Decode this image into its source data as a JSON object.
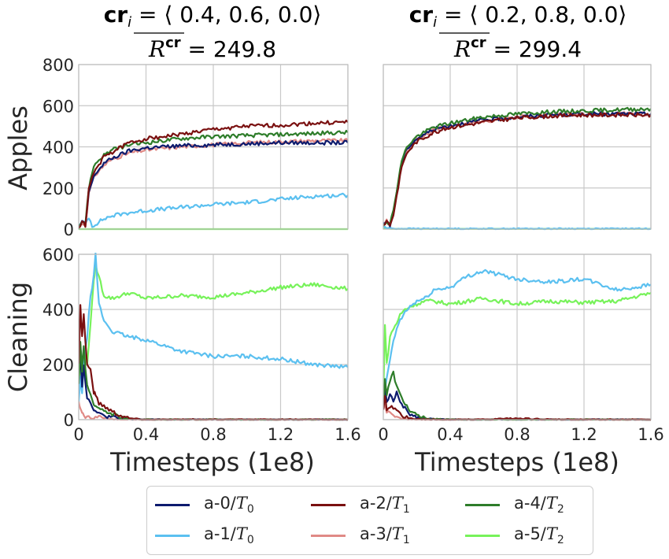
{
  "panel_titles": [
    {
      "line1_bold": "cr",
      "line1_sub": "i",
      "line1_rest": " = ⟨ 0.4, 0.6, 0.0⟩",
      "line2_rest": " = 249.8"
    },
    {
      "line1_bold": "cr",
      "line1_sub": "i",
      "line1_rest": " = ⟨ 0.2, 0.8, 0.0⟩",
      "line2_rest": " = 299.4"
    }
  ],
  "reward_symbol": {
    "base": "R",
    "sup": "cr"
  },
  "ylabels": {
    "top": "Apples",
    "bottom": "Cleaning"
  },
  "xlabel": "Timesteps (1e8)",
  "colors": {
    "a0": "#0d1b6e",
    "a1": "#5bc0f0",
    "a2": "#7a1010",
    "a3": "#e08a86",
    "a4": "#2e7d2a",
    "a5": "#77f25a",
    "grid": "#c8c8c8",
    "spine": "#bdbdbd"
  },
  "legend": [
    {
      "key": "a0",
      "prefix": "a-0/",
      "var": "T",
      "sub": "0"
    },
    {
      "key": "a1",
      "prefix": "a-1/",
      "var": "T",
      "sub": "0"
    },
    {
      "key": "a2",
      "prefix": "a-2/",
      "var": "T",
      "sub": "1"
    },
    {
      "key": "a3",
      "prefix": "a-3/",
      "var": "T",
      "sub": "1"
    },
    {
      "key": "a4",
      "prefix": "a-4/",
      "var": "T",
      "sub": "2"
    },
    {
      "key": "a5",
      "prefix": "a-5/",
      "var": "T",
      "sub": "2"
    }
  ],
  "chart_data": [
    {
      "type": "line",
      "panel": "top-left",
      "xlabel": "",
      "ylabel": "Apples",
      "xlim": [
        0,
        1.6
      ],
      "ylim": [
        0,
        800
      ],
      "yticks": [
        0,
        200,
        400,
        600,
        800
      ],
      "xticks": [
        0,
        0.4,
        0.8,
        1.2,
        1.6
      ],
      "xtick_labels_visible": false,
      "grid": true,
      "x": [
        0,
        0.02,
        0.04,
        0.06,
        0.08,
        0.1,
        0.15,
        0.2,
        0.3,
        0.4,
        0.6,
        0.8,
        1.0,
        1.2,
        1.4,
        1.6
      ],
      "series": [
        {
          "key": "a0",
          "values": [
            10,
            35,
            20,
            180,
            230,
            270,
            320,
            345,
            380,
            395,
            405,
            410,
            415,
            420,
            420,
            420
          ]
        },
        {
          "key": "a1",
          "values": [
            10,
            30,
            25,
            60,
            15,
            25,
            50,
            65,
            80,
            90,
            105,
            120,
            130,
            145,
            160,
            165
          ]
        },
        {
          "key": "a2",
          "values": [
            10,
            30,
            20,
            190,
            250,
            290,
            350,
            375,
            420,
            440,
            460,
            485,
            500,
            505,
            515,
            520
          ]
        },
        {
          "key": "a3",
          "values": [
            10,
            28,
            20,
            170,
            230,
            265,
            310,
            340,
            370,
            385,
            400,
            410,
            420,
            425,
            430,
            430
          ]
        },
        {
          "key": "a4",
          "values": [
            10,
            40,
            25,
            200,
            280,
            320,
            360,
            385,
            410,
            420,
            440,
            450,
            455,
            460,
            465,
            470
          ]
        },
        {
          "key": "a5",
          "values": [
            0,
            0,
            0,
            0,
            0,
            0,
            0,
            0,
            0,
            0,
            0,
            0,
            0,
            0,
            0,
            0
          ]
        }
      ]
    },
    {
      "type": "line",
      "panel": "top-right",
      "xlabel": "",
      "ylabel": "",
      "xlim": [
        0,
        1.6
      ],
      "ylim": [
        0,
        800
      ],
      "yticks": [
        0,
        200,
        400,
        600,
        800
      ],
      "ytick_labels_visible": false,
      "xticks": [
        0,
        0.4,
        0.8,
        1.2,
        1.6
      ],
      "xtick_labels_visible": false,
      "grid": true,
      "x": [
        0,
        0.02,
        0.04,
        0.06,
        0.08,
        0.1,
        0.12,
        0.15,
        0.2,
        0.3,
        0.4,
        0.6,
        0.8,
        1.0,
        1.2,
        1.4,
        1.6
      ],
      "series": [
        {
          "key": "a0",
          "values": [
            20,
            40,
            20,
            80,
            180,
            280,
            350,
            400,
            440,
            485,
            505,
            530,
            545,
            555,
            560,
            560,
            560
          ]
        },
        {
          "key": "a1",
          "values": [
            10,
            5,
            5,
            3,
            2,
            2,
            2,
            2,
            2,
            2,
            2,
            2,
            2,
            2,
            2,
            2,
            2
          ]
        },
        {
          "key": "a2",
          "values": [
            20,
            40,
            20,
            70,
            160,
            260,
            330,
            380,
            425,
            470,
            495,
            520,
            540,
            550,
            555,
            555,
            555
          ]
        },
        {
          "key": "a3",
          "values": [
            20,
            40,
            20,
            75,
            170,
            270,
            340,
            390,
            435,
            480,
            500,
            525,
            545,
            555,
            560,
            560,
            560
          ]
        },
        {
          "key": "a4",
          "values": [
            20,
            42,
            22,
            90,
            190,
            290,
            360,
            410,
            450,
            495,
            515,
            545,
            560,
            570,
            575,
            580,
            585
          ]
        },
        {
          "key": "a5",
          "values": [
            5,
            3,
            2,
            1,
            1,
            1,
            1,
            1,
            1,
            1,
            1,
            1,
            1,
            1,
            1,
            1,
            1
          ]
        }
      ]
    },
    {
      "type": "line",
      "panel": "bottom-left",
      "xlabel": "Timesteps (1e8)",
      "ylabel": "Cleaning",
      "xlim": [
        0,
        1.6
      ],
      "ylim": [
        0,
        600
      ],
      "yticks": [
        0,
        200,
        400,
        600
      ],
      "xticks": [
        0,
        0.4,
        0.8,
        1.2,
        1.6
      ],
      "grid": true,
      "x": [
        0,
        0.01,
        0.02,
        0.03,
        0.05,
        0.07,
        0.09,
        0.1,
        0.12,
        0.15,
        0.2,
        0.25,
        0.3,
        0.4,
        0.6,
        0.8,
        1.0,
        1.2,
        1.4,
        1.6
      ],
      "series": [
        {
          "key": "a0",
          "values": [
            150,
            250,
            120,
            200,
            80,
            60,
            40,
            30,
            20,
            15,
            8,
            4,
            2,
            0,
            0,
            0,
            0,
            0,
            0,
            0
          ]
        },
        {
          "key": "a1",
          "values": [
            60,
            150,
            100,
            200,
            300,
            450,
            520,
            600,
            420,
            360,
            320,
            310,
            300,
            290,
            250,
            230,
            230,
            220,
            200,
            190
          ]
        },
        {
          "key": "a2",
          "values": [
            200,
            420,
            300,
            380,
            200,
            180,
            100,
            90,
            60,
            50,
            30,
            15,
            5,
            0,
            0,
            0,
            0,
            0,
            0,
            0
          ]
        },
        {
          "key": "a3",
          "values": [
            60,
            40,
            20,
            15,
            10,
            5,
            5,
            8,
            10,
            5,
            2,
            0,
            0,
            0,
            0,
            0,
            0,
            0,
            0,
            0
          ]
        },
        {
          "key": "a4",
          "values": [
            130,
            280,
            180,
            260,
            120,
            90,
            60,
            50,
            35,
            30,
            20,
            8,
            2,
            0,
            0,
            0,
            0,
            0,
            0,
            0
          ]
        },
        {
          "key": "a5",
          "values": [
            100,
            200,
            150,
            250,
            200,
            350,
            500,
            560,
            520,
            450,
            440,
            450,
            460,
            440,
            450,
            445,
            460,
            480,
            490,
            475
          ]
        }
      ]
    },
    {
      "type": "line",
      "panel": "bottom-right",
      "xlabel": "Timesteps (1e8)",
      "ylabel": "",
      "xlim": [
        0,
        1.6
      ],
      "ylim": [
        0,
        600
      ],
      "yticks": [
        0,
        200,
        400,
        600
      ],
      "ytick_labels_visible": false,
      "xticks": [
        0,
        0.4,
        0.8,
        1.2,
        1.6
      ],
      "grid": true,
      "x": [
        0,
        0.01,
        0.02,
        0.04,
        0.06,
        0.08,
        0.1,
        0.13,
        0.16,
        0.2,
        0.25,
        0.3,
        0.4,
        0.5,
        0.6,
        0.8,
        1.0,
        1.2,
        1.4,
        1.6
      ],
      "series": [
        {
          "key": "a0",
          "values": [
            40,
            120,
            60,
            90,
            70,
            100,
            60,
            40,
            20,
            10,
            5,
            2,
            0,
            0,
            0,
            0,
            0,
            0,
            0,
            0
          ]
        },
        {
          "key": "a1",
          "values": [
            30,
            100,
            150,
            220,
            280,
            330,
            360,
            390,
            410,
            430,
            440,
            470,
            480,
            520,
            540,
            510,
            500,
            510,
            470,
            490
          ]
        },
        {
          "key": "a2",
          "values": [
            30,
            80,
            40,
            50,
            40,
            30,
            20,
            10,
            5,
            2,
            0,
            0,
            0,
            0,
            0,
            5,
            0,
            0,
            0,
            0
          ]
        },
        {
          "key": "a3",
          "values": [
            40,
            60,
            30,
            20,
            15,
            10,
            5,
            2,
            0,
            0,
            0,
            0,
            0,
            0,
            0,
            0,
            0,
            0,
            0,
            0
          ]
        },
        {
          "key": "a4",
          "values": [
            60,
            150,
            90,
            140,
            170,
            120,
            90,
            60,
            30,
            15,
            5,
            2,
            0,
            0,
            0,
            0,
            0,
            0,
            0,
            0
          ]
        },
        {
          "key": "a5",
          "values": [
            80,
            350,
            200,
            300,
            330,
            350,
            380,
            400,
            410,
            420,
            430,
            430,
            420,
            430,
            440,
            420,
            430,
            425,
            430,
            460
          ]
        }
      ]
    }
  ]
}
